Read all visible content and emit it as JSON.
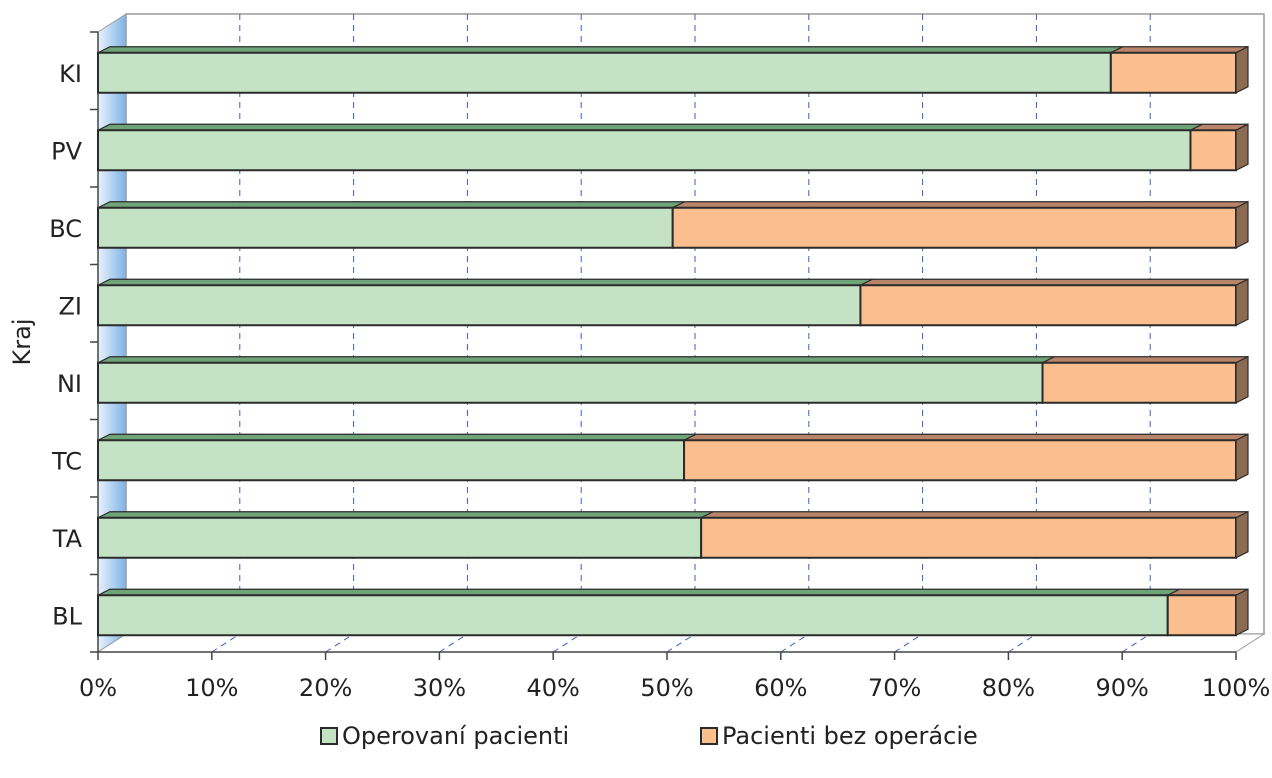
{
  "chart_data": {
    "type": "bar",
    "orientation": "horizontal",
    "stacked": "percent",
    "ylabel": "Kraj",
    "xlabel": "",
    "xlim": [
      0,
      100
    ],
    "x_ticks": [
      "0%",
      "10%",
      "20%",
      "30%",
      "40%",
      "50%",
      "60%",
      "70%",
      "80%",
      "90%",
      "100%"
    ],
    "categories": [
      "KI",
      "PV",
      "BC",
      "ZI",
      "NI",
      "TC",
      "TA",
      "BL"
    ],
    "series": [
      {
        "name": "Operovaní pacienti",
        "color": "#c4e3c4",
        "top_color": "#6fa378",
        "side_color": "#5c8a64",
        "values": [
          89,
          96,
          50.5,
          67,
          83,
          51.5,
          53,
          94
        ]
      },
      {
        "name": "Pacienti bez operácie",
        "color": "#fbbf8f",
        "top_color": "#b9856a",
        "side_color": "#8d6a52",
        "values": [
          11,
          4,
          49.5,
          33,
          17,
          48.5,
          47,
          6
        ]
      }
    ],
    "grid": true,
    "legend_position": "bottom"
  }
}
